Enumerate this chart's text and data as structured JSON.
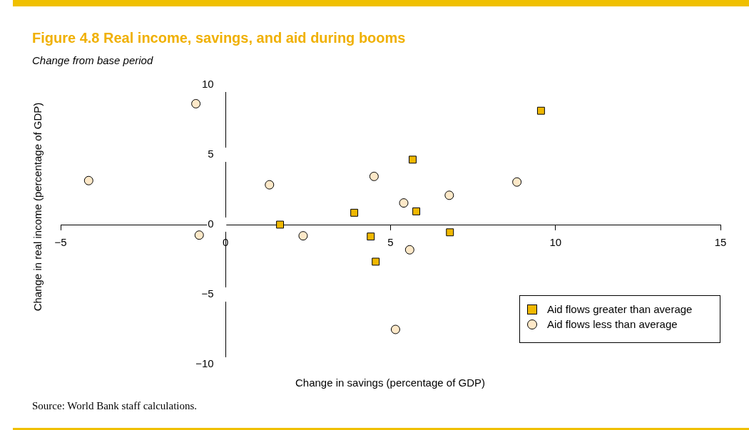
{
  "chart_data": {
    "type": "scatter",
    "title": "Figure 4.8  Real income, savings, and aid during booms",
    "subtitle": "Change from base period",
    "xlabel": "Change in savings (percentage of GDP)",
    "ylabel": "Change in real income (percentage of GDP)",
    "xlim": [
      -5,
      15
    ],
    "xticks": [
      -5,
      0,
      5,
      10,
      15
    ],
    "ylim": [
      -10,
      10
    ],
    "yticks": [
      -10,
      -5,
      0,
      5,
      10
    ],
    "grid": false,
    "legend": "bottom right",
    "annotations": [
      "Source: World Bank staff calculations."
    ],
    "series": [
      {
        "name": "Aid flows greater than average",
        "color": "#f0b800",
        "marker": "square",
        "x": [
          1.65,
          3.9,
          4.4,
          4.55,
          5.67,
          5.78,
          6.8,
          9.56
        ],
        "values": [
          0,
          0.85,
          -0.85,
          -2.65,
          4.65,
          0.95,
          -0.55,
          8.15
        ]
      },
      {
        "name": "Aid flows less than average",
        "color": "#fde8c8",
        "marker": "circle",
        "x": [
          -4.15,
          -0.9,
          -0.8,
          1.33,
          2.35,
          4.5,
          5.4,
          5.58,
          6.78,
          8.83,
          5.15
        ],
        "values": [
          3.15,
          8.65,
          -0.75,
          2.85,
          -0.8,
          3.45,
          1.55,
          -1.8,
          2.1,
          3.05,
          -7.5
        ]
      }
    ]
  }
}
